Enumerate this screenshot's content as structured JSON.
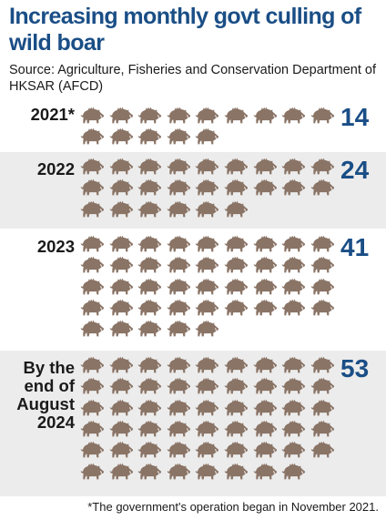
{
  "title": "Increasing monthly govt culling of wild boar",
  "source": "Source: Agriculture, Fisheries and Conservation Department of HKSAR (AFCD)",
  "footnote": "*The government's operation began in November 2021.",
  "colors": {
    "accent": "#1a4e86",
    "boar": "#8a7466",
    "shade": "#ececec"
  },
  "icon": "wild-boar-icon",
  "chart_data": {
    "type": "bar",
    "title": "Increasing monthly govt culling of wild boar",
    "categories": [
      "2021*",
      "2022",
      "2023",
      "By the end of August 2024"
    ],
    "values": [
      14,
      24,
      41,
      53
    ],
    "category_labels": [
      [
        "2021*"
      ],
      [
        "2022"
      ],
      [
        "2023"
      ],
      [
        "By the",
        "end of",
        "August",
        "2024"
      ]
    ],
    "value_labels": [
      "14",
      "24",
      "41",
      "53"
    ],
    "icons_per_row": 9,
    "shaded_rows": [
      false,
      true,
      false,
      true
    ]
  }
}
